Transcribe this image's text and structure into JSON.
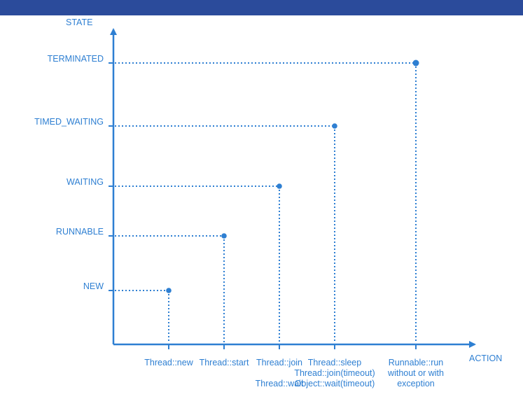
{
  "header": {
    "bar_color": "#2b4b9b"
  },
  "colors": {
    "accent": "#2e7fd2"
  },
  "axes": {
    "y_title": "STATE",
    "x_title": "ACTION"
  },
  "states": [
    {
      "label": "NEW"
    },
    {
      "label": "RUNNABLE"
    },
    {
      "label": "WAITING"
    },
    {
      "label": "TIMED_WAITING"
    },
    {
      "label": "TERMINATED"
    }
  ],
  "actions": [
    {
      "lines": [
        "Thread::new"
      ]
    },
    {
      "lines": [
        "Thread::start"
      ]
    },
    {
      "lines": [
        "Thread::join",
        "",
        "Thread::wait"
      ]
    },
    {
      "lines": [
        "Thread::sleep",
        "Thread::join(timeout)",
        "Object::wait(timeout)"
      ]
    },
    {
      "lines": [
        "Runnable::run",
        "without or with",
        "exception"
      ]
    }
  ],
  "transitions": [
    {
      "action": 0,
      "state": 0
    },
    {
      "action": 1,
      "state": 1
    },
    {
      "action": 2,
      "state": 2
    },
    {
      "action": 3,
      "state": 3
    },
    {
      "action": 4,
      "state": 4
    }
  ]
}
